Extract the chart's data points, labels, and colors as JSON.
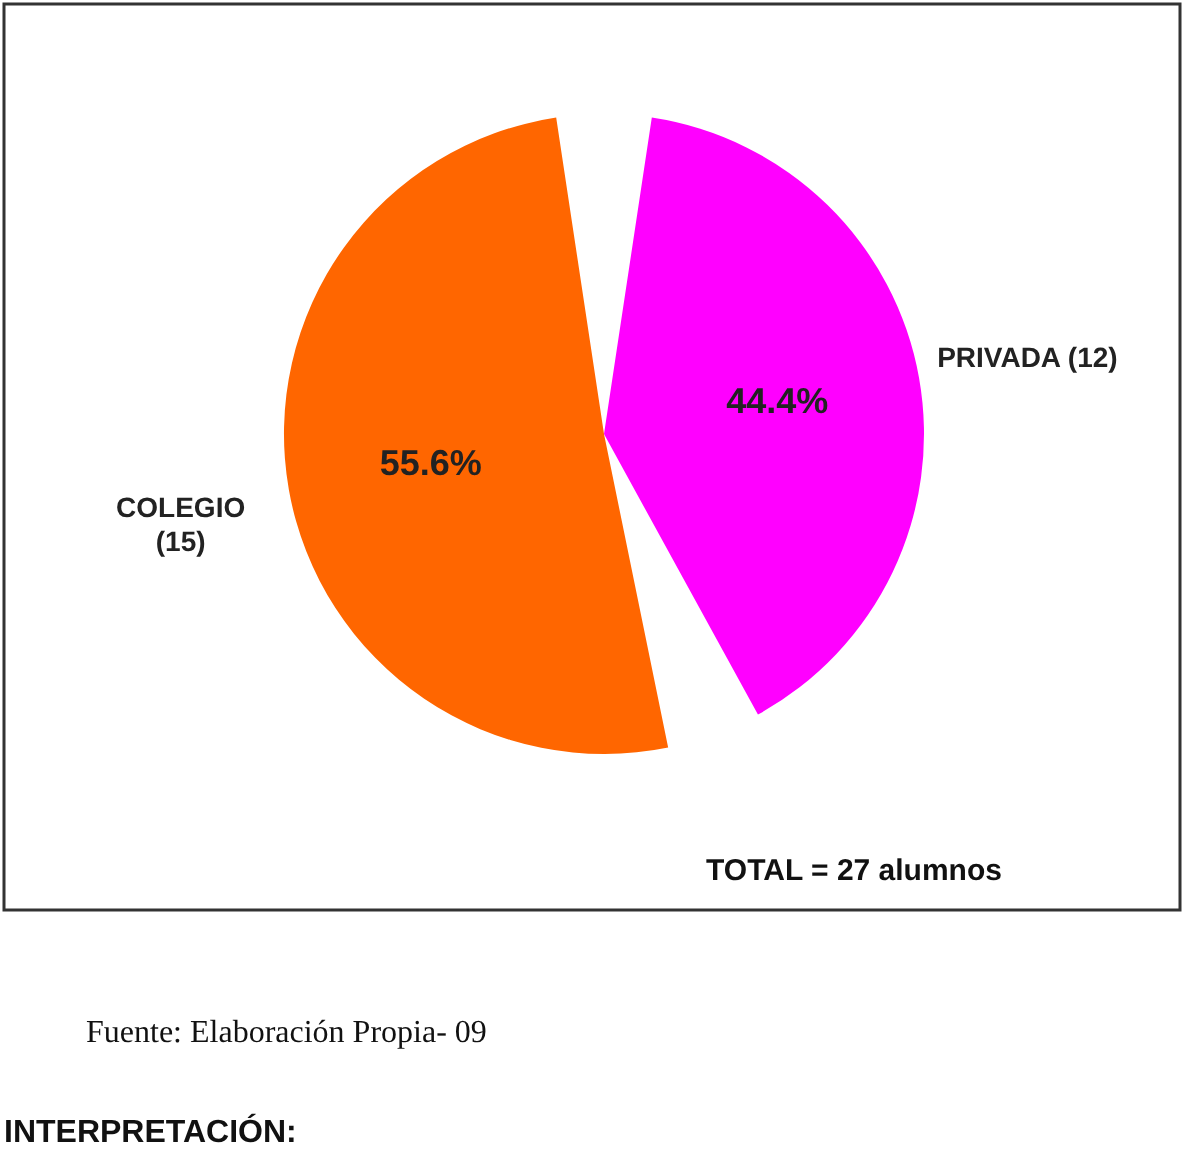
{
  "chart_data": {
    "type": "pie",
    "categories": [
      "COLEGIO (15)",
      "PRIVADA (12)"
    ],
    "values": [
      55.6,
      44.4
    ],
    "colors": [
      "#ff6600",
      "#ff00ff"
    ],
    "value_labels": [
      "55.6%",
      "44.4%"
    ],
    "annotations": [
      "TOTAL = 27 alumnos",
      "Fuente: Elaboración Propia- 09",
      "INTERPRETACIÓN:"
    ]
  }
}
